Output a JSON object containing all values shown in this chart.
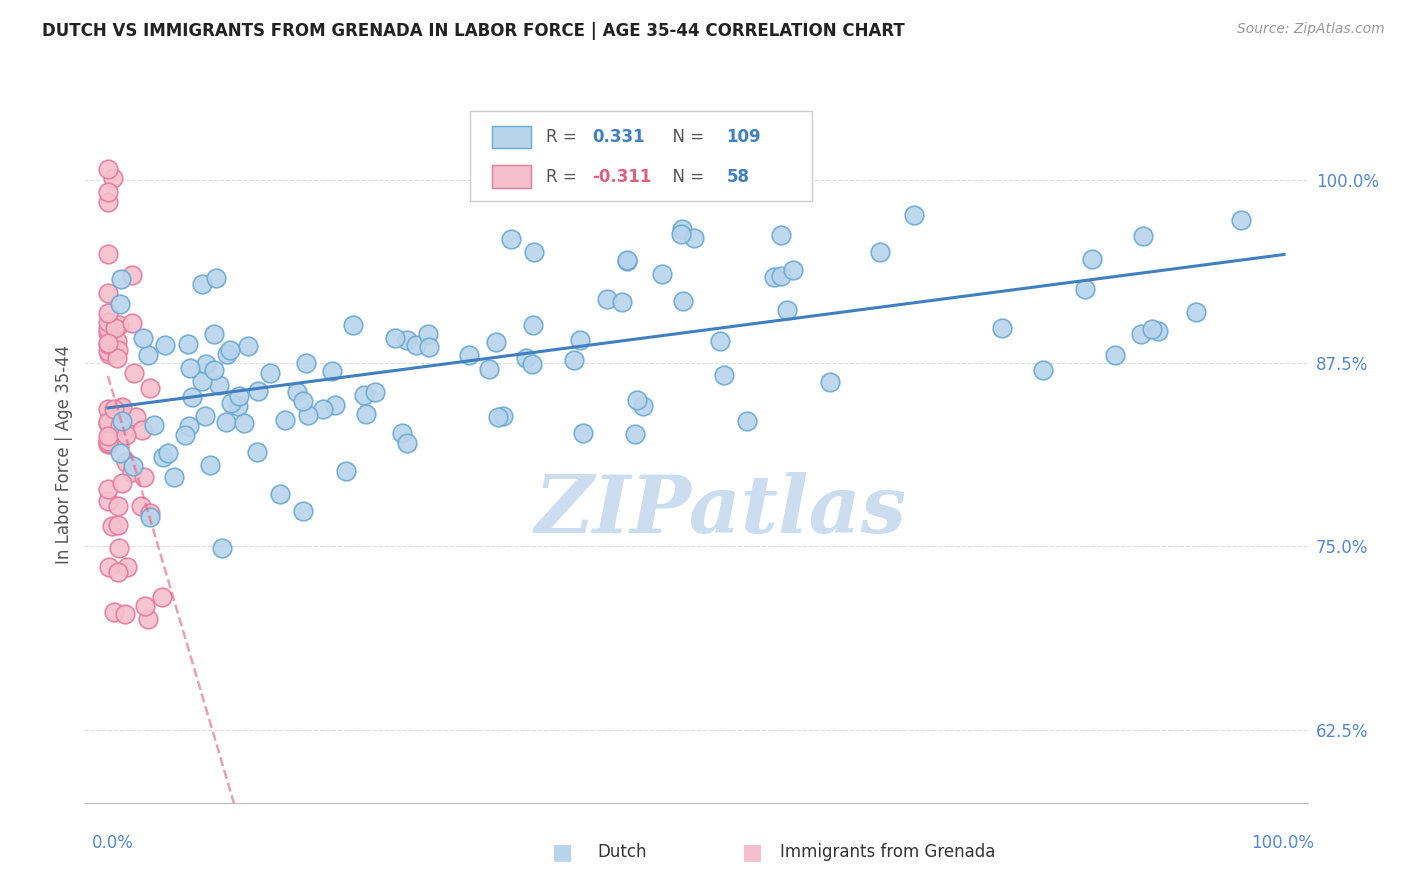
{
  "title": "DUTCH VS IMMIGRANTS FROM GRENADA IN LABOR FORCE | AGE 35-44 CORRELATION CHART",
  "source": "Source: ZipAtlas.com",
  "ylabel": "In Labor Force | Age 35-44",
  "y_ticks": [
    0.625,
    0.75,
    0.875,
    1.0
  ],
  "y_tick_labels": [
    "62.5%",
    "75.0%",
    "87.5%",
    "100.0%"
  ],
  "dutch_R": 0.331,
  "dutch_N": 109,
  "grenada_R": -0.311,
  "grenada_N": 58,
  "dutch_color": "#b8d4ec",
  "dutch_edge_color": "#6aaad4",
  "grenada_color": "#f5bfce",
  "grenada_edge_color": "#e87a9a",
  "blue_line_color": "#4080c0",
  "pink_line_color": "#e06080",
  "watermark_color": "#ccddf0",
  "background_color": "#ffffff",
  "grid_color": "#dddddd",
  "title_color": "#222222",
  "source_color": "#999999",
  "tick_color": "#5588cc",
  "axis_label_color": "#555555"
}
